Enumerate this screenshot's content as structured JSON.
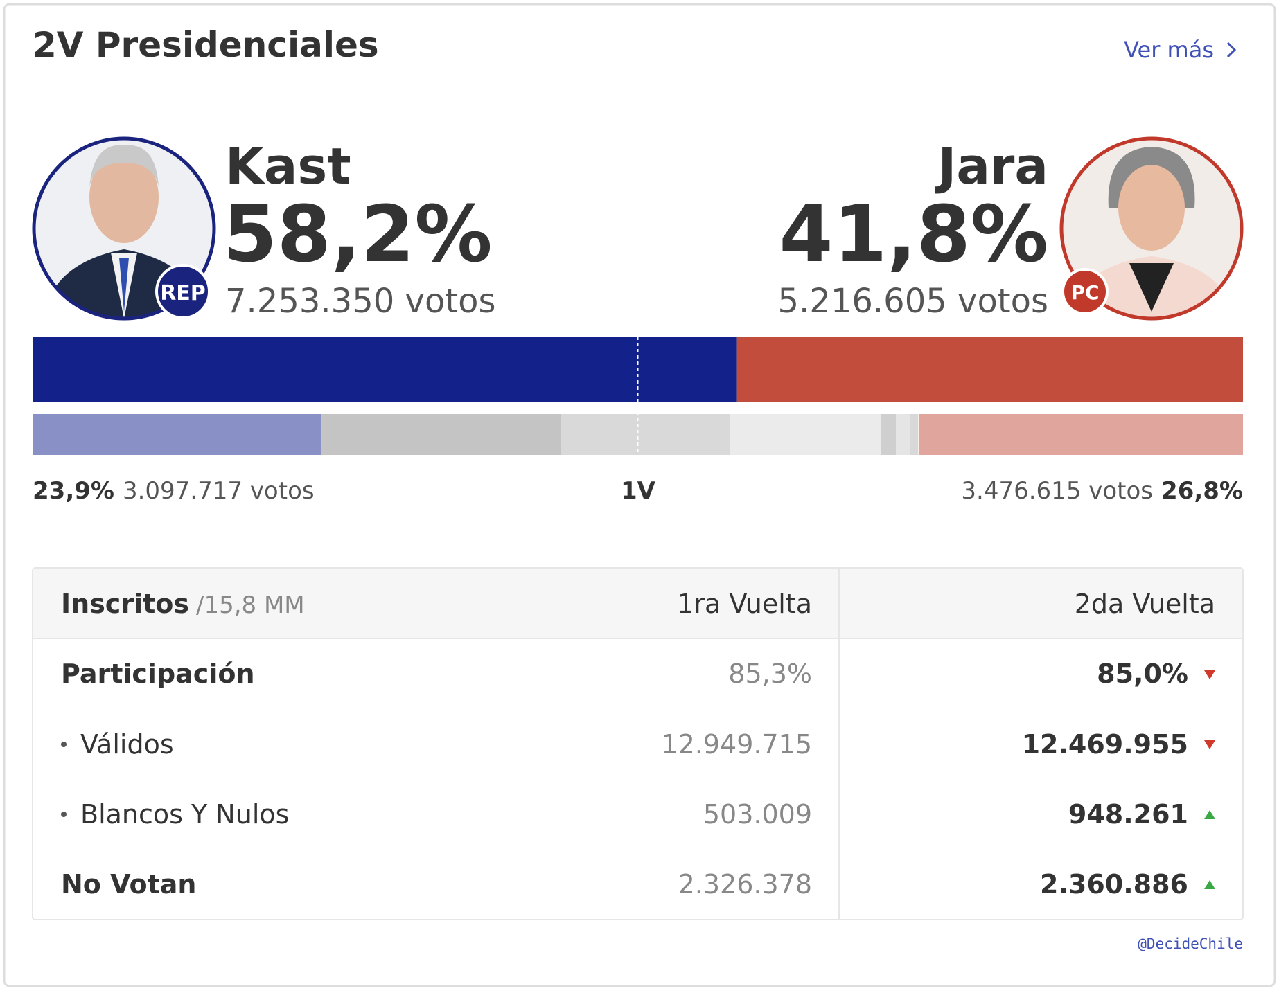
{
  "header": {
    "title": "2V Presidenciales",
    "link": "Ver más"
  },
  "candidates": [
    {
      "name": "Kast",
      "party": "REP",
      "percent": "58,2%",
      "votes": "7.253.350 votos",
      "first_round": {
        "percent": "23,9%",
        "votes": "3.097.717 votos"
      }
    },
    {
      "name": "Jara",
      "party": "PC",
      "percent": "41,8%",
      "votes": "5.216.605 votos",
      "first_round": {
        "percent": "26,8%",
        "votes": "3.476.615 votos"
      }
    }
  ],
  "first_round_label": "1V",
  "table": {
    "header": [
      "Inscritos",
      "/15,8 MM",
      "1ra Vuelta",
      "2da Vuelta"
    ],
    "rows": [
      [
        "Participación",
        "85,3%",
        "85,0%"
      ],
      [
        "Válidos",
        "12.949.715",
        "12.469.955"
      ],
      [
        "Blancos Y Nulos",
        "503.009",
        "948.261"
      ],
      [
        "No Votan",
        "2.326.378",
        "2.360.886"
      ]
    ]
  },
  "footer": "@DecideChile"
}
